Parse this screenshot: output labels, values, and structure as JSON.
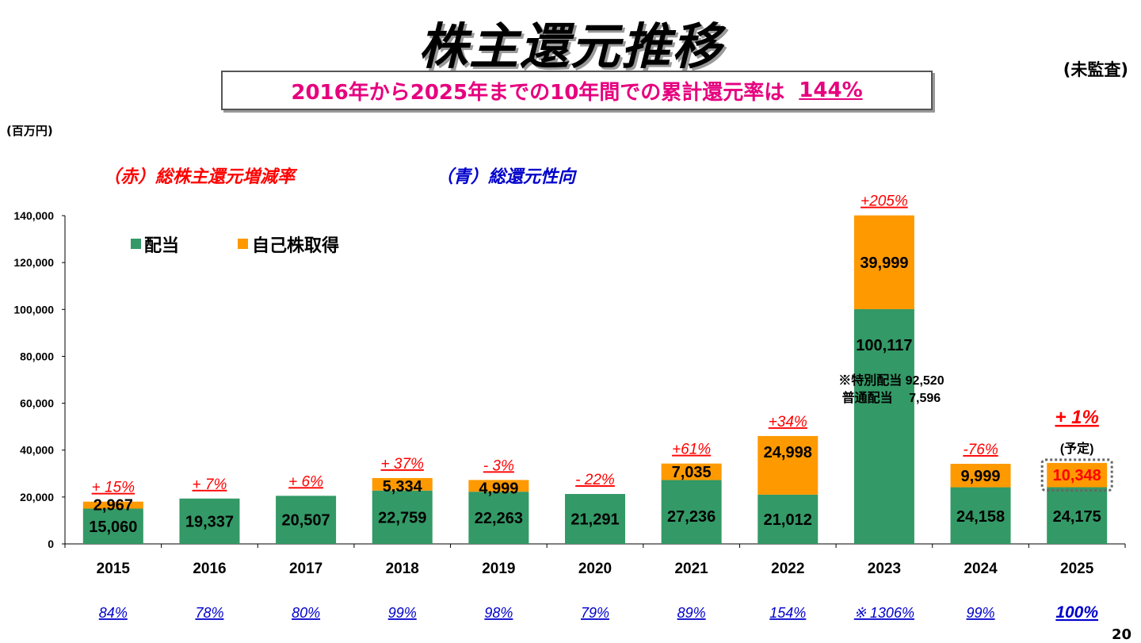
{
  "title": "株主還元推移",
  "unaudited": "(未監査)",
  "banner": {
    "text": "2016年から2025年までの10年間での累計還元率は",
    "rate": "144%"
  },
  "unit": "(百万円)",
  "legend_red": "（赤）総株主還元増減率",
  "legend_blue": "（青）総還元性向",
  "page_number": "20",
  "colors": {
    "dividend": "#339966",
    "buyback": "#ff9900",
    "growth": "#ff0000",
    "payout": "#0000cc"
  },
  "chart_data": {
    "type": "bar",
    "stacked": true,
    "categories": [
      "2015",
      "2016",
      "2017",
      "2018",
      "2019",
      "2020",
      "2021",
      "2022",
      "2023",
      "2024",
      "2025"
    ],
    "ylim": [
      0,
      140000
    ],
    "yticks": [
      0,
      20000,
      40000,
      60000,
      80000,
      100000,
      120000,
      140000
    ],
    "ytick_labels": [
      "0",
      "20,000",
      "40,000",
      "60,000",
      "80,000",
      "100,000",
      "120,000",
      "140,000"
    ],
    "series": [
      {
        "name": "配当",
        "values": [
          15060,
          19337,
          20507,
          22759,
          22263,
          21291,
          27236,
          21012,
          100117,
          24158,
          24175
        ],
        "labels": [
          "15,060",
          "19,337",
          "20,507",
          "22,759",
          "22,263",
          "21,291",
          "27,236",
          "21,012",
          "100,117",
          "24,158",
          "24,175"
        ]
      },
      {
        "name": "自己株取得",
        "values": [
          2967,
          0,
          0,
          5334,
          4999,
          0,
          7035,
          24998,
          39999,
          9999,
          10348
        ],
        "labels": [
          "2,967",
          "",
          "",
          "5,334",
          "4,999",
          "",
          "7,035",
          "24,998",
          "39,999",
          "9,999",
          "10,348"
        ]
      }
    ],
    "growth_rates": [
      "+ 15%",
      "+ 7%",
      "+ 6%",
      "+ 37%",
      "- 3%",
      "- 22%",
      "+61%",
      "+34%",
      "+205%",
      "-76%",
      "+ 1%"
    ],
    "payout_ratios": [
      "84%",
      "78%",
      "80%",
      "99%",
      "98%",
      "79%",
      "89%",
      "154%",
      "※ 1306%",
      "99%",
      "100%"
    ],
    "forecast_note": "(予定)",
    "annotation_2023": {
      "line1": "※特別配当 92,520",
      "line2": "普通配当　 7,596"
    }
  }
}
